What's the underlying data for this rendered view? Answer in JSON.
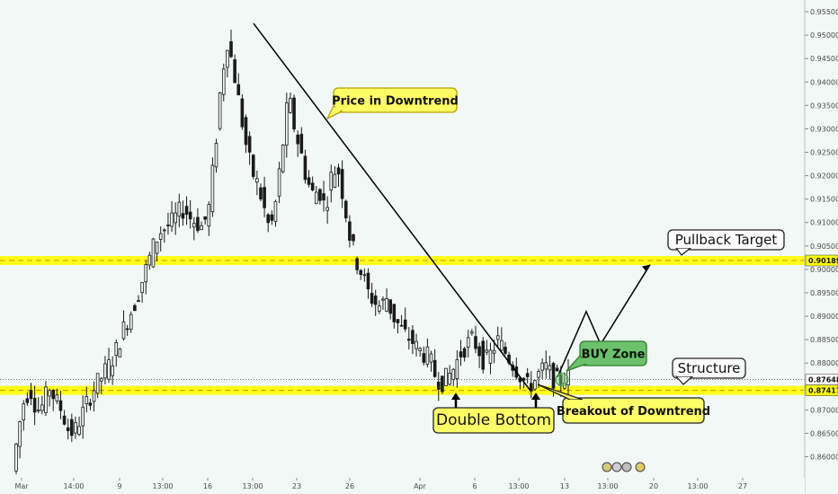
{
  "colors": {
    "background": "#f1f8f6",
    "candle": "#1a1a1a",
    "zone": "#ffff00",
    "zone_dash": "#e08a00",
    "callout_yellow": "#ffff66",
    "callout_green": "#6cc26c"
  },
  "chart_data": {
    "type": "candlestick",
    "y_axis": {
      "side": "right",
      "range": [
        0.8555,
        0.9575
      ],
      "ticks": [
        "0.95500",
        "0.95000",
        "0.94500",
        "0.94000",
        "0.93500",
        "0.93000",
        "0.92500",
        "0.92000",
        "0.91500",
        "0.91000",
        "0.90500",
        "0.90000",
        "0.89500",
        "0.89000",
        "0.88500",
        "0.88000",
        "0.87500",
        "0.87000",
        "0.86500",
        "0.86000"
      ]
    },
    "x_axis": {
      "ticks": [
        "Mar",
        "14:00",
        "9",
        "13:00",
        "16",
        "13:00",
        "23",
        "26",
        "Apr",
        "6",
        "13:00",
        "13",
        "13:00",
        "20",
        "13:00",
        "27"
      ]
    },
    "price_labels": [
      "0.90189",
      "0.87648",
      "0.87417"
    ],
    "levels": [
      {
        "name": "pullback-target-level",
        "value": 0.90189
      },
      {
        "name": "structure-level",
        "value": 0.87417
      }
    ],
    "current_price": 0.87648,
    "trendline": {
      "start": 0.9525,
      "end": 0.8741
    },
    "projection": [
      0.877,
      0.891,
      0.884,
      0.901
    ],
    "annotations": {
      "price_in_downtrend": "Price in Downtrend",
      "pullback_target": "Pullback Target",
      "buy_zone": "BUY Zone",
      "structure": "Structure",
      "double_bottom": "Double Bottom",
      "breakout": "Breakout of Downtrend"
    },
    "path": [
      0.857,
      0.866,
      0.873,
      0.874,
      0.87,
      0.871,
      0.875,
      0.872,
      0.87,
      0.866,
      0.865,
      0.868,
      0.871,
      0.874,
      0.876,
      0.878,
      0.88,
      0.883,
      0.887,
      0.89,
      0.893,
      0.897,
      0.901,
      0.905,
      0.908,
      0.909,
      0.91,
      0.912,
      0.913,
      0.911,
      0.91,
      0.909,
      0.913,
      0.925,
      0.94,
      0.949,
      0.943,
      0.935,
      0.927,
      0.921,
      0.918,
      0.913,
      0.908,
      0.915,
      0.926,
      0.937,
      0.93,
      0.925,
      0.919,
      0.916,
      0.917,
      0.913,
      0.92,
      0.922,
      0.915,
      0.907,
      0.902,
      0.899,
      0.895,
      0.893,
      0.892,
      0.894,
      0.89,
      0.888,
      0.886,
      0.885,
      0.883,
      0.882,
      0.881,
      0.877,
      0.876,
      0.877,
      0.879,
      0.882,
      0.884,
      0.885,
      0.883,
      0.88,
      0.882,
      0.885,
      0.883,
      0.881,
      0.879,
      0.877,
      0.875,
      0.876,
      0.878,
      0.879,
      0.877,
      0.876,
      0.877
    ]
  }
}
